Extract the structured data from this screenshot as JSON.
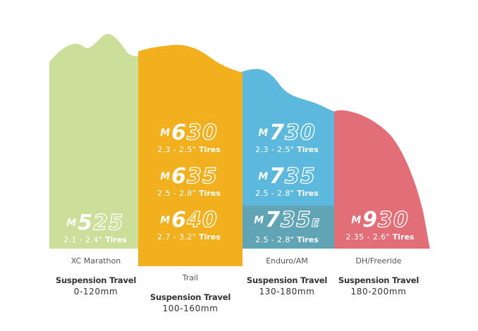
{
  "colors": {
    "xc": "#ccdf9a",
    "trail": "#f2b01e",
    "enduro": "#5db8dd",
    "enduro_bottom": "#60a4b6",
    "dh": "#e26f78",
    "text": "#333333"
  },
  "columns": [
    {
      "category": "XC Marathon",
      "suspension_title": "Suspension Travel",
      "suspension_range": "0-120mm",
      "models": [
        {
          "prefix": "M",
          "first_digit": "5",
          "rest": "25",
          "suffix": "",
          "tire_range": "2.1 - 2.4\"",
          "tire_word": "Tires"
        }
      ]
    },
    {
      "category": "Trail",
      "suspension_title": "Suspension Travel",
      "suspension_range": "100-160mm",
      "models": [
        {
          "prefix": "M",
          "first_digit": "6",
          "rest": "30",
          "suffix": "",
          "tire_range": "2.3 - 2.5\"",
          "tire_word": "Tires"
        },
        {
          "prefix": "M",
          "first_digit": "6",
          "rest": "35",
          "suffix": "",
          "tire_range": "2.5 - 2.8\"",
          "tire_word": "Tires"
        },
        {
          "prefix": "M",
          "first_digit": "6",
          "rest": "40",
          "suffix": "",
          "tire_range": "2.7 - 3.2\"",
          "tire_word": "Tires"
        }
      ]
    },
    {
      "category": "Enduro/AM",
      "suspension_title": "Suspension Travel",
      "suspension_range": "130-180mm",
      "models": [
        {
          "prefix": "M",
          "first_digit": "7",
          "rest": "30",
          "suffix": "",
          "tire_range": "2.3 - 2.5\"",
          "tire_word": "Tires"
        },
        {
          "prefix": "M",
          "first_digit": "7",
          "rest": "35",
          "suffix": "",
          "tire_range": "2.5 - 2.8\"",
          "tire_word": "Tires"
        },
        {
          "prefix": "M",
          "first_digit": "7",
          "rest": "35",
          "suffix": "E",
          "tire_range": "2.5 - 2.8\"",
          "tire_word": "Tires"
        }
      ]
    },
    {
      "category": "DH/Freeride",
      "suspension_title": "Suspension Travel",
      "suspension_range": "180-200mm",
      "models": [
        {
          "prefix": "M",
          "first_digit": "9",
          "rest": "30",
          "suffix": "",
          "tire_range": "2.35 - 2.6\"",
          "tire_word": "Tires"
        }
      ]
    }
  ]
}
